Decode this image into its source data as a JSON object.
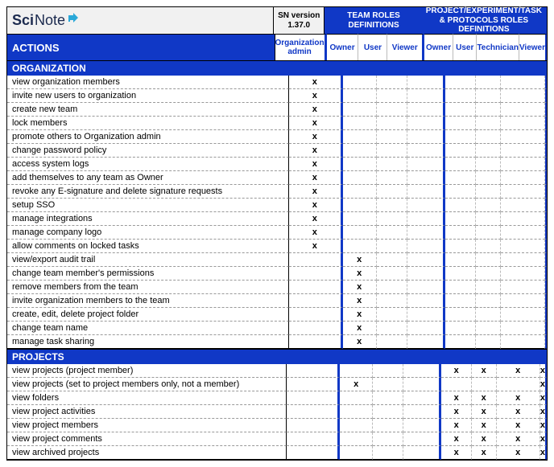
{
  "brand": {
    "sci": "Sci",
    "note": "Note"
  },
  "version": {
    "label": "SN version",
    "value": "1.37.0"
  },
  "groups": {
    "team": "TEAM ROLES DEFINITIONS",
    "proj": "PROJECT/EXPERIMENT/TASK & PROTOCOLS ROLES DEFINITIONS"
  },
  "actions_label": "ACTIONS",
  "cols": {
    "orgadmin": "Organization admin",
    "t_owner": "Owner",
    "t_user": "User",
    "t_viewer": "Viewer",
    "p_owner": "Owner",
    "p_user": "User",
    "p_tech": "Technician",
    "p_viewer": "Viewer"
  },
  "mark": "x",
  "sections": [
    {
      "title": "ORGANIZATION",
      "rows": [
        {
          "label": "view organization members",
          "x": [
            "orgadmin"
          ]
        },
        {
          "label": "invite new users to organization",
          "x": [
            "orgadmin"
          ]
        },
        {
          "label": "create new team",
          "x": [
            "orgadmin"
          ]
        },
        {
          "label": "lock members",
          "x": [
            "orgadmin"
          ]
        },
        {
          "label": "promote others to Organization admin",
          "x": [
            "orgadmin"
          ]
        },
        {
          "label": "change password policy",
          "x": [
            "orgadmin"
          ]
        },
        {
          "label": "access system logs",
          "x": [
            "orgadmin"
          ]
        },
        {
          "label": "add themselves to any team as Owner",
          "x": [
            "orgadmin"
          ]
        },
        {
          "label": "revoke any E-signature and delete signature requests",
          "x": [
            "orgadmin"
          ]
        },
        {
          "label": "setup SSO",
          "x": [
            "orgadmin"
          ]
        },
        {
          "label": "manage integrations",
          "x": [
            "orgadmin"
          ]
        },
        {
          "label": "manage company logo",
          "x": [
            "orgadmin"
          ]
        },
        {
          "label": "allow comments on locked tasks",
          "x": [
            "orgadmin"
          ]
        },
        {
          "label": "view/export audit trail",
          "x": [
            "t_owner"
          ]
        },
        {
          "label": "change team member's permissions",
          "x": [
            "t_owner"
          ]
        },
        {
          "label": "remove members from the team",
          "x": [
            "t_owner"
          ]
        },
        {
          "label": "invite organization members to the team",
          "x": [
            "t_owner"
          ]
        },
        {
          "label": "create, edit, delete project folder",
          "x": [
            "t_owner"
          ]
        },
        {
          "label": "change team name",
          "x": [
            "t_owner"
          ]
        },
        {
          "label": "manage task sharing",
          "x": [
            "t_owner"
          ]
        }
      ]
    },
    {
      "title": "PROJECTS",
      "rows": [
        {
          "label": "view projects (project member)",
          "x": [
            "p_owner",
            "p_user",
            "p_tech",
            "p_viewer"
          ]
        },
        {
          "label": "view projects (set to project members only, not a member)",
          "x": [
            "t_owner",
            "p_viewer"
          ]
        },
        {
          "label": "view folders",
          "x": [
            "p_owner",
            "p_user",
            "p_tech",
            "p_viewer"
          ]
        },
        {
          "label": "view project activities",
          "x": [
            "p_owner",
            "p_user",
            "p_tech",
            "p_viewer"
          ]
        },
        {
          "label": "view project members",
          "x": [
            "p_owner",
            "p_user",
            "p_tech",
            "p_viewer"
          ]
        },
        {
          "label": "view project comments",
          "x": [
            "p_owner",
            "p_user",
            "p_tech",
            "p_viewer"
          ]
        },
        {
          "label": "view archived projects",
          "x": [
            "p_owner",
            "p_user",
            "p_tech",
            "p_viewer"
          ]
        }
      ]
    }
  ],
  "colors": {
    "brand_blue": "#1038c6",
    "logo_text": "#1b2a4e",
    "header_bg": "#f1f1f1"
  }
}
